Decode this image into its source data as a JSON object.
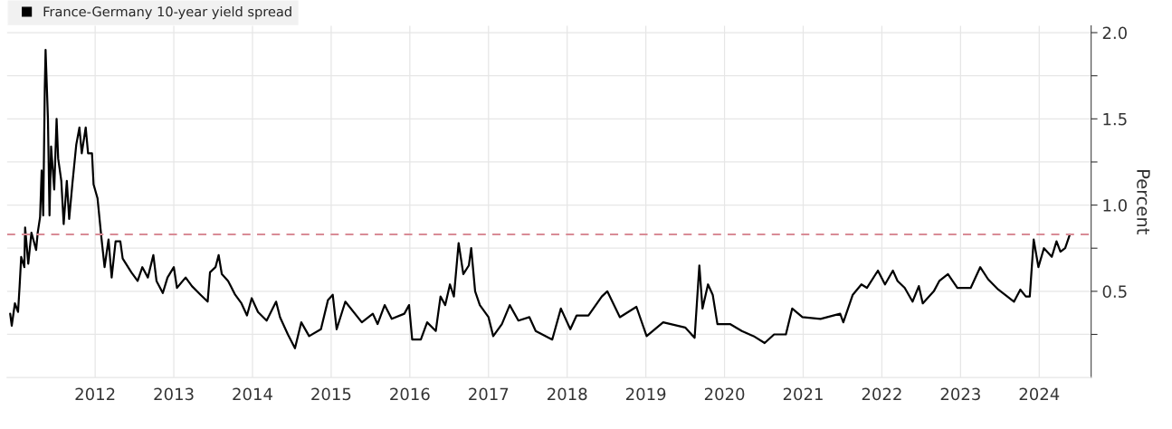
{
  "chart_data": {
    "type": "line",
    "ylabel": "Percent",
    "series": [
      {
        "name": "France-Germany 10-year yield spread",
        "color": "#000000",
        "x": [
          2011.42,
          2011.44,
          2011.48,
          2011.52,
          2011.54,
          2011.56,
          2011.6,
          2011.61,
          2011.65,
          2011.69,
          2011.75,
          2011.77,
          2011.8,
          2011.82,
          2011.84,
          2011.86,
          2011.87,
          2011.9,
          2011.92,
          2011.94,
          2011.98,
          2012.01,
          2012.03,
          2012.07,
          2012.1,
          2012.14,
          2012.17,
          2012.21,
          2012.26,
          2012.3,
          2012.33,
          2012.38,
          2012.41,
          2012.46,
          2012.48,
          2012.53,
          2012.58,
          2012.62,
          2012.67,
          2012.71,
          2012.76,
          2012.82,
          2012.85,
          2012.96,
          2013.04,
          2013.1,
          2013.17,
          2013.24,
          2013.28,
          2013.36,
          2013.42,
          2013.5,
          2013.54,
          2013.65,
          2013.73,
          2013.84,
          2013.93,
          2013.96,
          2014.03,
          2014.07,
          2014.11,
          2014.19,
          2014.28,
          2014.36,
          2014.43,
          2014.49,
          2014.57,
          2014.68,
          2014.8,
          2014.85,
          2014.95,
          2015.04,
          2015.12,
          2015.22,
          2015.37,
          2015.46,
          2015.52,
          2015.57,
          2015.68,
          2015.89,
          2016.03,
          2016.09,
          2016.18,
          2016.27,
          2016.43,
          2016.49,
          2016.53,
          2016.64,
          2016.72,
          2016.83,
          2016.89,
          2016.95,
          2017.01,
          2017.06,
          2017.12,
          2017.18,
          2017.25,
          2017.28,
          2017.33,
          2017.39,
          2017.5,
          2017.56,
          2017.67,
          2017.77,
          2017.88,
          2018.02,
          2018.1,
          2018.31,
          2018.42,
          2018.54,
          2018.62,
          2018.77,
          2018.94,
          2019.01,
          2019.17,
          2019.38,
          2019.51,
          2019.72,
          2020.0,
          2020.12,
          2020.18,
          2020.22,
          2020.29,
          2020.35,
          2020.41,
          2020.57,
          2020.72,
          2020.87,
          2021.01,
          2021.13,
          2021.28,
          2021.36,
          2021.49,
          2021.72,
          2021.97,
          2022.01,
          2022.13,
          2022.24,
          2022.31,
          2022.45,
          2022.54,
          2022.64,
          2022.7,
          2022.79,
          2022.89,
          2022.97,
          2023.02,
          2023.16,
          2023.23,
          2023.34,
          2023.46,
          2023.63,
          2023.75,
          2023.85,
          2023.98,
          2024.18,
          2024.26,
          2024.33,
          2024.38,
          2024.43,
          2024.49,
          2024.56,
          2024.66,
          2024.72,
          2024.77,
          2024.83,
          2024.89
        ],
        "values": [
          0.37,
          0.3,
          0.43,
          0.38,
          0.53,
          0.7,
          0.64,
          0.87,
          0.66,
          0.84,
          0.74,
          0.84,
          0.93,
          1.2,
          0.94,
          1.68,
          1.9,
          1.5,
          0.94,
          1.34,
          1.09,
          1.5,
          1.27,
          1.14,
          0.89,
          1.14,
          0.92,
          1.12,
          1.35,
          1.45,
          1.3,
          1.45,
          1.3,
          1.3,
          1.12,
          1.04,
          0.81,
          0.64,
          0.8,
          0.58,
          0.79,
          0.79,
          0.69,
          0.61,
          0.56,
          0.64,
          0.58,
          0.71,
          0.56,
          0.49,
          0.58,
          0.64,
          0.52,
          0.58,
          0.53,
          0.48,
          0.44,
          0.61,
          0.64,
          0.71,
          0.6,
          0.56,
          0.48,
          0.43,
          0.36,
          0.46,
          0.38,
          0.33,
          0.44,
          0.35,
          0.25,
          0.17,
          0.32,
          0.24,
          0.28,
          0.45,
          0.48,
          0.28,
          0.44,
          0.32,
          0.37,
          0.31,
          0.42,
          0.34,
          0.37,
          0.42,
          0.22,
          0.22,
          0.32,
          0.27,
          0.47,
          0.42,
          0.54,
          0.47,
          0.78,
          0.6,
          0.65,
          0.75,
          0.5,
          0.42,
          0.35,
          0.24,
          0.31,
          0.42,
          0.33,
          0.35,
          0.27,
          0.22,
          0.4,
          0.28,
          0.36,
          0.36,
          0.47,
          0.5,
          0.35,
          0.41,
          0.24,
          0.32,
          0.29,
          0.23,
          0.65,
          0.4,
          0.54,
          0.48,
          0.31,
          0.31,
          0.27,
          0.24,
          0.2,
          0.25,
          0.25,
          0.4,
          0.35,
          0.34,
          0.37,
          0.32,
          0.48,
          0.54,
          0.52,
          0.62,
          0.54,
          0.62,
          0.56,
          0.52,
          0.44,
          0.53,
          0.43,
          0.5,
          0.56,
          0.6,
          0.52,
          0.52,
          0.64,
          0.57,
          0.51,
          0.44,
          0.51,
          0.47,
          0.47,
          0.8,
          0.64,
          0.75,
          0.7,
          0.79,
          0.73,
          0.75,
          0.83
        ]
      }
    ],
    "xlim": [
      2011.38,
      2025.16
    ],
    "xticks": [
      {
        "value": 2012.5,
        "label": "2012"
      },
      {
        "value": 2013.5,
        "label": "2013"
      },
      {
        "value": 2014.5,
        "label": "2014"
      },
      {
        "value": 2015.5,
        "label": "2015"
      },
      {
        "value": 2016.5,
        "label": "2016"
      },
      {
        "value": 2017.5,
        "label": "2017"
      },
      {
        "value": 2018.5,
        "label": "2018"
      },
      {
        "value": 2019.5,
        "label": "2019"
      },
      {
        "value": 2020.5,
        "label": "2020"
      },
      {
        "value": 2021.5,
        "label": "2021"
      },
      {
        "value": 2022.5,
        "label": "2022"
      },
      {
        "value": 2023.5,
        "label": "2023"
      },
      {
        "value": 2024.5,
        "label": "2024"
      }
    ],
    "ylim": [
      0,
      2.04
    ],
    "yticks": [
      {
        "value": 0.25,
        "label": null
      },
      {
        "value": 0.5,
        "label": "0.5"
      },
      {
        "value": 0.75,
        "label": null
      },
      {
        "value": 1.0,
        "label": "1.0"
      },
      {
        "value": 1.25,
        "label": null
      },
      {
        "value": 1.5,
        "label": "1.5"
      },
      {
        "value": 1.75,
        "label": null
      },
      {
        "value": 2.0,
        "label": "2.0"
      }
    ],
    "ref_lines": [
      {
        "axis": "y",
        "value": 0.83,
        "color": "#d98c96",
        "line_style": "dashed"
      }
    ],
    "grid": true,
    "legend": "top left",
    "line_style": "solid",
    "marker": "none"
  }
}
